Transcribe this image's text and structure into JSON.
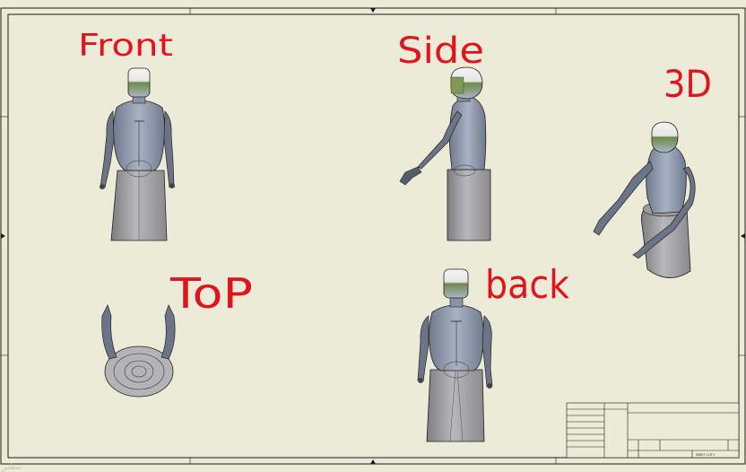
{
  "sheet": {
    "background": "#ecebd8",
    "border_color": "#1a1a1a",
    "ink_color": "#e0141e"
  },
  "labels": {
    "front": "Front",
    "side": "Side",
    "three_d": "3D",
    "top": "ToP",
    "back": "back"
  },
  "views": [
    {
      "id": "front",
      "label_key": "front"
    },
    {
      "id": "side",
      "label_key": "side"
    },
    {
      "id": "3d",
      "label_key": "three_d"
    },
    {
      "id": "top",
      "label_key": "top"
    },
    {
      "id": "back",
      "label_key": "back"
    }
  ],
  "title_block": {
    "sheet_text": "SHEET 1 OF 1"
  },
  "colors": {
    "body_fill": "#9aa3b4",
    "body_dark": "#5d6578",
    "base_fill": "#a3a3a6",
    "head_top": "#f2f2f2",
    "face": "#8aa05a"
  },
  "watermark": "تنشر"
}
